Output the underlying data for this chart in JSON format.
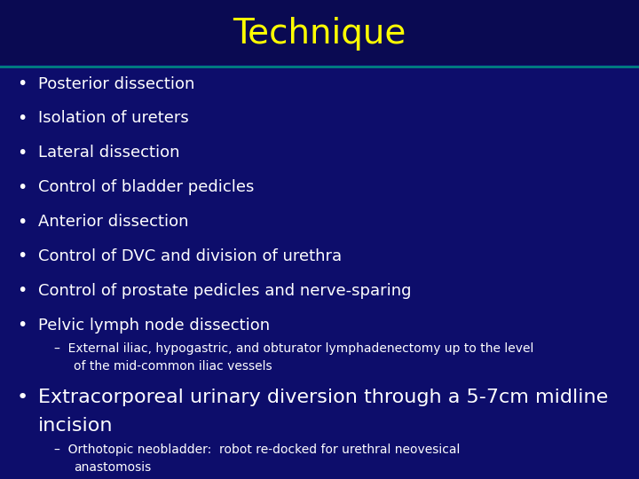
{
  "title": "Technique",
  "title_color": "#FFFF00",
  "title_fontsize": 28,
  "background_color": "#0D0D6B",
  "header_line_color": "#008080",
  "text_color": "#FFFFFF",
  "bullet_color": "#FFFFFF",
  "bullet_items": [
    "Posterior dissection",
    "Isolation of ureters",
    "Lateral dissection",
    "Control of bladder pedicles",
    "Anterior dissection",
    "Control of DVC and division of urethra",
    "Control of prostate pedicles and nerve-sparing",
    "Pelvic lymph node dissection"
  ],
  "sub_bullet_1_line1": "External iliac, hypogastric, and obturator lymphadenectomy up to the level",
  "sub_bullet_1_line2": "of the mid-common iliac vessels",
  "main_bullet_2_line1": "Extracorporeal urinary diversion through a 5-7cm midline",
  "main_bullet_2_line2": "incision",
  "sub_bullet_2_line1": "Orthotopic neobladder:  robot re-docked for urethral neovesical",
  "sub_bullet_2_line2": "anastomosis",
  "bullet_fontsize": 13,
  "sub_bullet_fontsize": 10,
  "main_bullet2_fontsize": 16
}
